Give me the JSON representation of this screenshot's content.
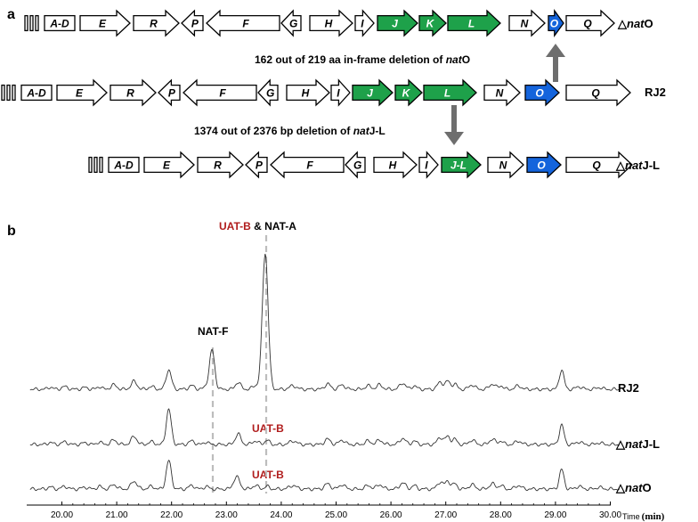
{
  "panel_a": {
    "label": "a",
    "rows": [
      {
        "strain": "△natO",
        "strain_parts": {
          "prefix": "△",
          "italic": "nat",
          "suffix": "O"
        },
        "genes": [
          {
            "name": "A-D",
            "color": "white"
          },
          {
            "name": "E",
            "color": "white"
          },
          {
            "name": "R",
            "color": "white"
          },
          {
            "name": "P",
            "color": "white"
          },
          {
            "name": "F",
            "color": "white"
          },
          {
            "name": "G",
            "color": "white"
          },
          {
            "name": "H",
            "color": "white"
          },
          {
            "name": "I",
            "color": "white"
          },
          {
            "name": "J",
            "color": "green"
          },
          {
            "name": "K",
            "color": "green"
          },
          {
            "name": "L",
            "color": "green"
          },
          {
            "name": "N",
            "color": "white"
          },
          {
            "name": "O",
            "color": "blue"
          },
          {
            "name": "Q",
            "color": "white"
          }
        ]
      },
      {
        "strain": "RJ2",
        "strain_parts": {
          "prefix": "",
          "italic": "",
          "suffix": "RJ2"
        },
        "genes": [
          {
            "name": "A-D",
            "color": "white"
          },
          {
            "name": "E",
            "color": "white"
          },
          {
            "name": "R",
            "color": "white"
          },
          {
            "name": "P",
            "color": "white"
          },
          {
            "name": "F",
            "color": "white"
          },
          {
            "name": "G",
            "color": "white"
          },
          {
            "name": "H",
            "color": "white"
          },
          {
            "name": "I",
            "color": "white"
          },
          {
            "name": "J",
            "color": "green"
          },
          {
            "name": "K",
            "color": "green"
          },
          {
            "name": "L",
            "color": "green"
          },
          {
            "name": "N",
            "color": "white"
          },
          {
            "name": "O",
            "color": "blue"
          },
          {
            "name": "Q",
            "color": "white"
          }
        ]
      },
      {
        "strain": "△natJ-L",
        "strain_parts": {
          "prefix": "△",
          "italic": "nat",
          "suffix": "J-L"
        },
        "genes": [
          {
            "name": "A-D",
            "color": "white"
          },
          {
            "name": "E",
            "color": "white"
          },
          {
            "name": "R",
            "color": "white"
          },
          {
            "name": "P",
            "color": "white"
          },
          {
            "name": "F",
            "color": "white"
          },
          {
            "name": "G",
            "color": "white"
          },
          {
            "name": "H",
            "color": "white"
          },
          {
            "name": "I",
            "color": "white"
          },
          {
            "name": "J-L",
            "color": "green"
          },
          {
            "name": "N",
            "color": "white"
          },
          {
            "name": "O",
            "color": "blue"
          },
          {
            "name": "Q",
            "color": "white"
          }
        ]
      }
    ],
    "deletion_O": {
      "prefix": "162 out of 219 aa in-frame deletion of ",
      "italic": "nat",
      "suffix": "O"
    },
    "deletion_JL": {
      "prefix": "1374 out of 2376 bp deletion of ",
      "italic": "nat",
      "suffix": "J-L"
    }
  },
  "panel_b": {
    "label": "b",
    "peak_uatb": "UAT-B",
    "peak_amp": " & ",
    "peak_nata": "NAT-A",
    "peak_natf": "NAT-F",
    "uatb_label": "UAT-B",
    "traces": [
      {
        "strain_parts": {
          "prefix": "",
          "italic": "",
          "suffix": "RJ2"
        }
      },
      {
        "strain_parts": {
          "prefix": "△",
          "italic": "nat",
          "suffix": "J-L"
        }
      },
      {
        "strain_parts": {
          "prefix": "△",
          "italic": "nat",
          "suffix": "O"
        }
      }
    ],
    "axis": {
      "ticks": [
        "20.00",
        "21.00",
        "22.00",
        "23.00",
        "24.00",
        "25.00",
        "26.00",
        "27.00",
        "28.00",
        "29.00",
        "30.00"
      ],
      "unit_prefix": "Time",
      "unit": "(min)"
    },
    "colors": {
      "green": "#1ea14a",
      "blue": "#1464dc",
      "red": "#b01c1c",
      "arrow": "#6e6e6e"
    }
  }
}
